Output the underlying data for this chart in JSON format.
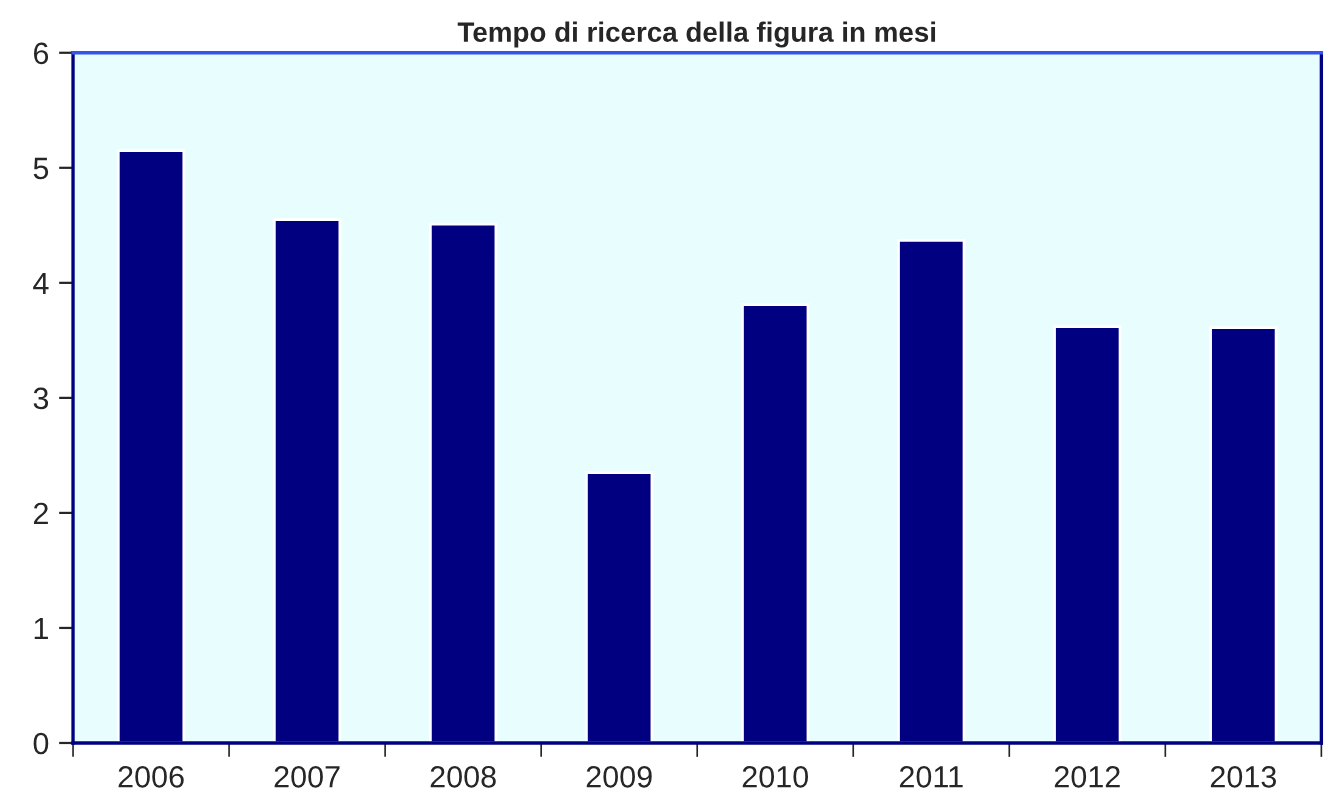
{
  "chart_data": {
    "type": "bar",
    "title": "Tempo di ricerca della figura in mesi",
    "categories": [
      "2006",
      "2007",
      "2008",
      "2009",
      "2010",
      "2011",
      "2012",
      "2013"
    ],
    "series": [
      {
        "color": "#000080",
        "values": [
          5.15,
          4.55,
          4.51,
          2.35,
          3.81,
          4.37,
          3.62,
          3.61
        ]
      }
    ],
    "ylim": [
      0,
      6
    ],
    "yticks": [
      0,
      1,
      2,
      3,
      4,
      5,
      6
    ],
    "grid": false,
    "legend": false
  }
}
